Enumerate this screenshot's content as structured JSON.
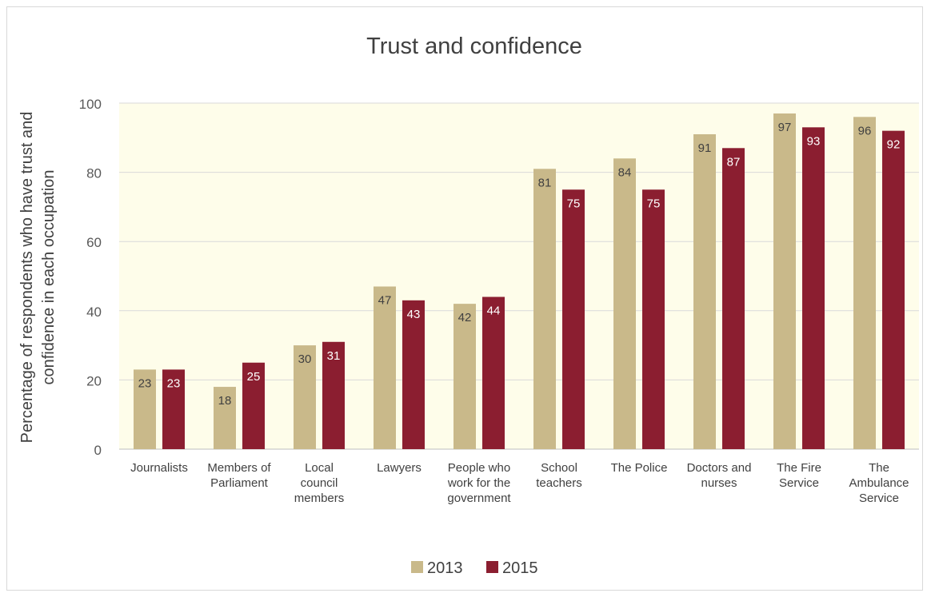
{
  "chart_data": {
    "type": "bar",
    "title": "Trust and confidence",
    "xlabel": "",
    "ylabel": "Percentage of respondents who have trust and confidence in each occupation",
    "ylabel_lines": [
      "Percentage of respondents who have trust and",
      "confidence in each occupation"
    ],
    "ylim": [
      0,
      100
    ],
    "yticks": [
      0,
      20,
      40,
      60,
      80,
      100
    ],
    "grid": true,
    "legend_position": "bottom",
    "categories": [
      "Journalists",
      "Members of Parliament",
      "Local council members",
      "Lawyers",
      "People who work for the government",
      "School teachers",
      "The Police",
      "Doctors and nurses",
      "The Fire Service",
      "The Ambulance Service"
    ],
    "category_lines": [
      [
        "Journalists"
      ],
      [
        "Members of",
        "Parliament"
      ],
      [
        "Local",
        "council",
        "members"
      ],
      [
        "Lawyers"
      ],
      [
        "People who",
        "work for the",
        "government"
      ],
      [
        "School",
        "teachers"
      ],
      [
        "The Police"
      ],
      [
        "Doctors and",
        "nurses"
      ],
      [
        "The Fire",
        "Service"
      ],
      [
        "The",
        "Ambulance",
        "Service"
      ]
    ],
    "series": [
      {
        "name": "2013",
        "color": "#c9b98a",
        "values": [
          23,
          18,
          30,
          47,
          42,
          81,
          84,
          91,
          97,
          96
        ]
      },
      {
        "name": "2015",
        "color": "#8b1e30",
        "values": [
          23,
          25,
          31,
          43,
          44,
          75,
          75,
          87,
          93,
          92
        ]
      }
    ],
    "plot_background": "#fefdea",
    "label_colors": {
      "2013": "#404040",
      "2015": "#ffffff"
    }
  }
}
